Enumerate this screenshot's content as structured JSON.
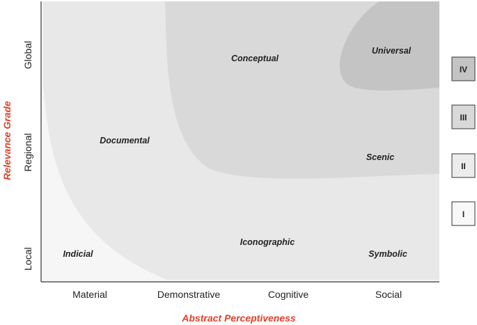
{
  "regions": {
    "conceptual": "Conceptual",
    "universal": "Universal",
    "documental": "Documental",
    "scenic": "Scenic",
    "indicial": "Indicial",
    "iconographic": "Iconographic",
    "symbolic": "Symbolic"
  },
  "x_axis": {
    "title": "Abstract Perceptiveness",
    "ticks": [
      "Material",
      "Demonstrative",
      "Cognitive",
      "Social"
    ]
  },
  "y_axis": {
    "title": "Relevance Grade",
    "ticks": [
      "Global",
      "Regional",
      "Local"
    ]
  },
  "levels": [
    "IV",
    "III",
    "II",
    "I"
  ],
  "colors": {
    "axis_title": "#e0402a",
    "plot_bg": "#f6f6f6",
    "band_outer": "#e8e8e8",
    "band_mid": "#d9d9d9",
    "band_inner": "#c4c4c4",
    "level_iv": "#c4c4c4",
    "level_iii": "#d9d9d9",
    "level_ii": "#ececec",
    "level_i": "#f8f8f8"
  }
}
